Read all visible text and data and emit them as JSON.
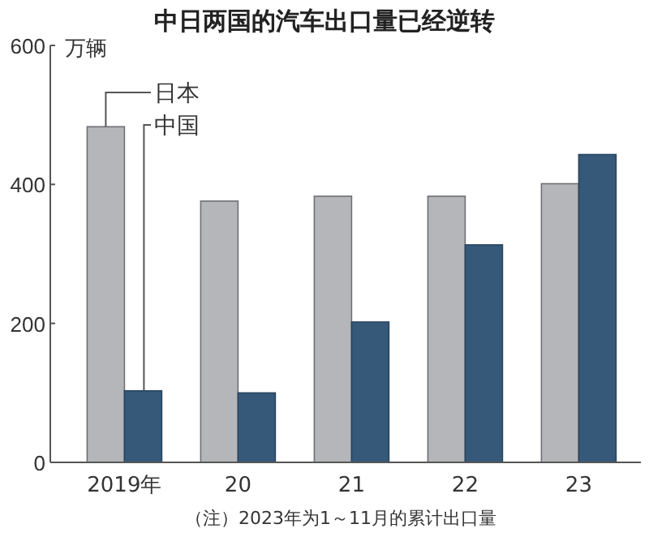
{
  "chart_data": {
    "type": "bar",
    "title": "中日两国的汽车出口量已经逆转",
    "ylabel": "万辆",
    "categories": [
      "2019年",
      "20",
      "21",
      "22",
      "23"
    ],
    "series": [
      {
        "name": "日本",
        "color": "#b5b6ba",
        "values": [
          483,
          376,
          383,
          383,
          401
        ]
      },
      {
        "name": "中国",
        "color": "#36597a",
        "values": [
          103,
          100,
          202,
          313,
          443
        ]
      }
    ],
    "ylim": [
      0,
      600
    ],
    "yticks": [
      0,
      200,
      400,
      600
    ],
    "legend": "top left",
    "annotations": [
      "（注）2023年为1～11月的累计出口量"
    ]
  }
}
